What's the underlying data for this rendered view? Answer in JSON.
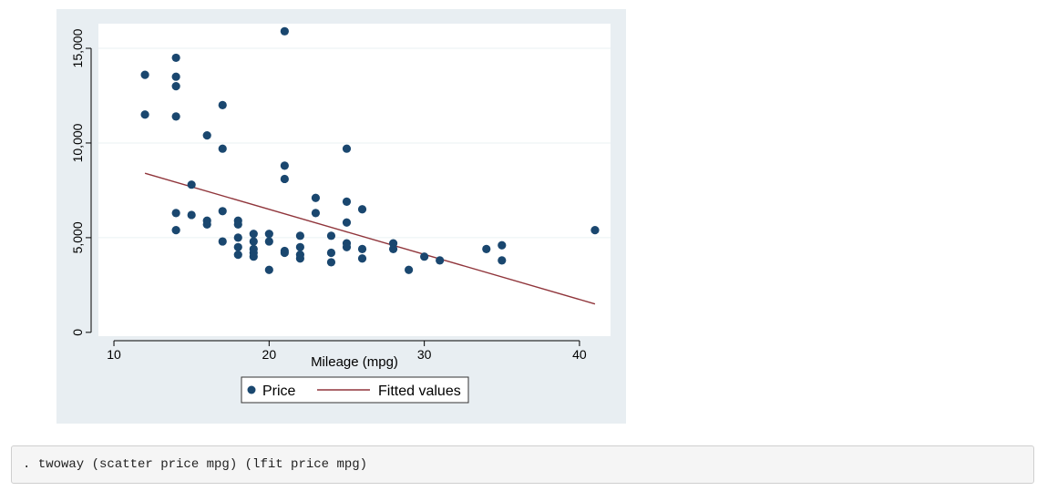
{
  "chart_data": {
    "type": "scatter",
    "xlabel": "Mileage (mpg)",
    "ylabel": "",
    "xlim": [
      9,
      42
    ],
    "ylim": [
      -200,
      16300
    ],
    "x_ticks": [
      10,
      20,
      30,
      40
    ],
    "x_tick_labels": [
      "10",
      "20",
      "30",
      "40"
    ],
    "y_ticks": [
      0,
      5000,
      10000,
      15000
    ],
    "y_tick_labels": [
      "0",
      "5,000",
      "10,000",
      "15,000"
    ],
    "grid": "horizontal",
    "legend_position": "bottom-center",
    "series": [
      {
        "name": "Price",
        "kind": "scatter",
        "color": "#1a476f",
        "points": [
          [
            12,
            13600
          ],
          [
            12,
            11500
          ],
          [
            14,
            14500
          ],
          [
            14,
            13500
          ],
          [
            14,
            13000
          ],
          [
            14,
            11400
          ],
          [
            14,
            6300
          ],
          [
            14,
            5400
          ],
          [
            15,
            7800
          ],
          [
            15,
            6200
          ],
          [
            16,
            10400
          ],
          [
            16,
            5900
          ],
          [
            16,
            5700
          ],
          [
            17,
            12000
          ],
          [
            17,
            9700
          ],
          [
            17,
            6400
          ],
          [
            17,
            4800
          ],
          [
            18,
            5900
          ],
          [
            18,
            5700
          ],
          [
            18,
            5000
          ],
          [
            18,
            4500
          ],
          [
            18,
            4100
          ],
          [
            19,
            5200
          ],
          [
            19,
            4800
          ],
          [
            19,
            4400
          ],
          [
            19,
            4200
          ],
          [
            19,
            4000
          ],
          [
            20,
            5200
          ],
          [
            20,
            4800
          ],
          [
            20,
            3300
          ],
          [
            21,
            15900
          ],
          [
            21,
            8800
          ],
          [
            21,
            8100
          ],
          [
            21,
            4300
          ],
          [
            21,
            4200
          ],
          [
            22,
            5100
          ],
          [
            22,
            4500
          ],
          [
            22,
            4100
          ],
          [
            22,
            3900
          ],
          [
            23,
            7100
          ],
          [
            23,
            6300
          ],
          [
            24,
            5100
          ],
          [
            24,
            4200
          ],
          [
            24,
            3700
          ],
          [
            25,
            9700
          ],
          [
            25,
            6900
          ],
          [
            25,
            5800
          ],
          [
            25,
            4700
          ],
          [
            25,
            4500
          ],
          [
            26,
            6500
          ],
          [
            26,
            4400
          ],
          [
            26,
            3900
          ],
          [
            28,
            4700
          ],
          [
            28,
            4400
          ],
          [
            29,
            3300
          ],
          [
            30,
            4000
          ],
          [
            31,
            3800
          ],
          [
            34,
            4400
          ],
          [
            35,
            4600
          ],
          [
            35,
            3800
          ],
          [
            41,
            5400
          ]
        ]
      },
      {
        "name": "Fitted values",
        "kind": "line",
        "color": "#90353b",
        "points": [
          [
            12,
            8400
          ],
          [
            41,
            1500
          ]
        ]
      }
    ]
  },
  "command": {
    "text": ". twoway (scatter price mpg) (lfit price mpg)"
  }
}
